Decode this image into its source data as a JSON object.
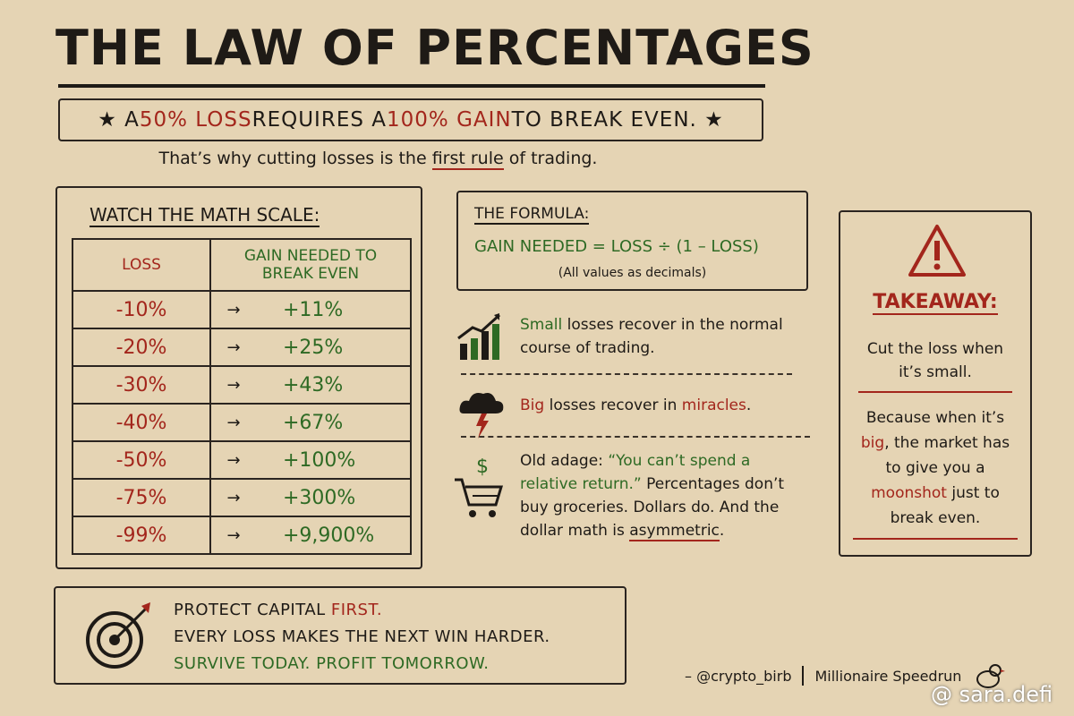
{
  "title": "THE LAW OF PERCENTAGES",
  "banner": [
    {
      "text": "★ A "
    },
    {
      "text": "50% LOSS",
      "color": "red"
    },
    {
      "text": " REQUIRES A "
    },
    {
      "text": "100% GAIN",
      "color": "red"
    },
    {
      "text": " TO BREAK EVEN. ★"
    }
  ],
  "subtitle": [
    {
      "text": "That’s why cutting losses is the "
    },
    {
      "text": "first rule",
      "underline": true
    },
    {
      "text": " of trading."
    }
  ],
  "table": {
    "heading": "WATCH THE MATH SCALE:",
    "columns": [
      [
        "LOSS"
      ],
      [
        "GAIN NEEDED TO",
        "BREAK EVEN"
      ]
    ],
    "arrow": "→",
    "rows": [
      [
        "-10%",
        "+11%"
      ],
      [
        "-20%",
        "+25%"
      ],
      [
        "-30%",
        "+43%"
      ],
      [
        "-40%",
        "+67%"
      ],
      [
        "-50%",
        "+100%"
      ],
      [
        "-75%",
        "+300%"
      ],
      [
        "-99%",
        "+9,900%"
      ]
    ]
  },
  "formula": {
    "heading": "THE FORMULA:",
    "equation": "GAIN NEEDED = LOSS ÷ (1 – LOSS)",
    "note": "(All values as decimals)"
  },
  "points": [
    [
      {
        "text": "Small",
        "color": "green"
      },
      {
        "text": " losses recover in the normal course of trading."
      }
    ],
    [
      {
        "text": "Big",
        "color": "red"
      },
      {
        "text": " losses recover in "
      },
      {
        "text": "miracles",
        "color": "red"
      },
      {
        "text": "."
      }
    ],
    [
      {
        "text": "Old adage: "
      },
      {
        "text": "“You can’t spend a relative return.”",
        "color": "green"
      },
      {
        "text": " Percentages don’t buy groceries. Dollars do. And the dollar math is "
      },
      {
        "text": "asymmetric",
        "underline": true
      },
      {
        "text": "."
      }
    ]
  ],
  "takeaway": {
    "heading": "TAKEAWAY:",
    "first": [
      {
        "text": "Cut the loss when it’s small."
      }
    ],
    "second": [
      {
        "text": "Because when it’s "
      },
      {
        "text": "big",
        "color": "red"
      },
      {
        "text": ", the market has to give you a "
      },
      {
        "text": "moonshot",
        "color": "red"
      },
      {
        "text": " just to break even."
      }
    ]
  },
  "bottom": [
    [
      {
        "text": "PROTECT CAPITAL "
      },
      {
        "text": "FIRST.",
        "color": "red"
      }
    ],
    [
      {
        "text": "EVERY LOSS MAKES THE NEXT WIN HARDER."
      }
    ],
    [
      {
        "text": "SURVIVE TODAY. PROFIT TOMORROW.",
        "color": "green"
      }
    ]
  ],
  "footer": {
    "author": "– @crypto_birb",
    "series": "Millionaire Speedrun",
    "watermark": "@ sara.defi"
  }
}
